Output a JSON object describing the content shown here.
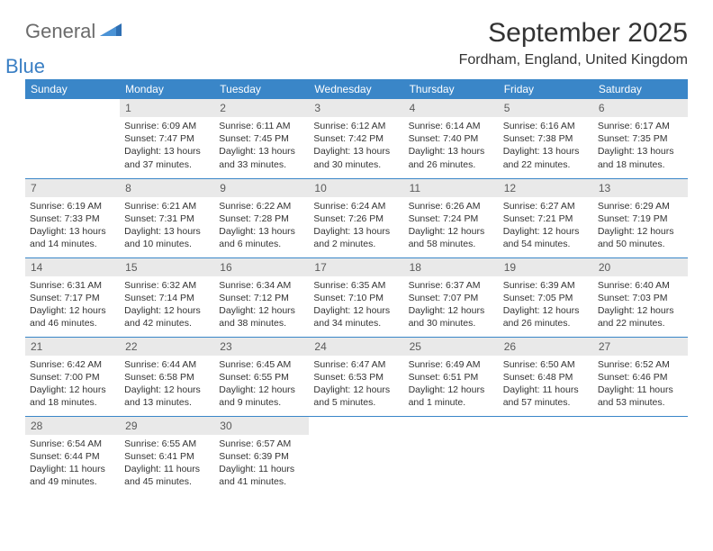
{
  "brand": {
    "word1": "General",
    "word2": "Blue"
  },
  "title": "September 2025",
  "location": "Fordham, England, United Kingdom",
  "colors": {
    "header_bg": "#3a86c8",
    "header_text": "#ffffff",
    "daynum_bg": "#e9e9e9",
    "daynum_text": "#5a5a5a",
    "body_text": "#333333",
    "rule": "#3a86c8",
    "logo_gray": "#6b6b6b",
    "logo_blue": "#3a7fc4"
  },
  "weekday_labels": [
    "Sunday",
    "Monday",
    "Tuesday",
    "Wednesday",
    "Thursday",
    "Friday",
    "Saturday"
  ],
  "days": [
    {
      "n": 1,
      "sunrise": "6:09 AM",
      "sunset": "7:47 PM",
      "daylight": "13 hours and 37 minutes."
    },
    {
      "n": 2,
      "sunrise": "6:11 AM",
      "sunset": "7:45 PM",
      "daylight": "13 hours and 33 minutes."
    },
    {
      "n": 3,
      "sunrise": "6:12 AM",
      "sunset": "7:42 PM",
      "daylight": "13 hours and 30 minutes."
    },
    {
      "n": 4,
      "sunrise": "6:14 AM",
      "sunset": "7:40 PM",
      "daylight": "13 hours and 26 minutes."
    },
    {
      "n": 5,
      "sunrise": "6:16 AM",
      "sunset": "7:38 PM",
      "daylight": "13 hours and 22 minutes."
    },
    {
      "n": 6,
      "sunrise": "6:17 AM",
      "sunset": "7:35 PM",
      "daylight": "13 hours and 18 minutes."
    },
    {
      "n": 7,
      "sunrise": "6:19 AM",
      "sunset": "7:33 PM",
      "daylight": "13 hours and 14 minutes."
    },
    {
      "n": 8,
      "sunrise": "6:21 AM",
      "sunset": "7:31 PM",
      "daylight": "13 hours and 10 minutes."
    },
    {
      "n": 9,
      "sunrise": "6:22 AM",
      "sunset": "7:28 PM",
      "daylight": "13 hours and 6 minutes."
    },
    {
      "n": 10,
      "sunrise": "6:24 AM",
      "sunset": "7:26 PM",
      "daylight": "13 hours and 2 minutes."
    },
    {
      "n": 11,
      "sunrise": "6:26 AM",
      "sunset": "7:24 PM",
      "daylight": "12 hours and 58 minutes."
    },
    {
      "n": 12,
      "sunrise": "6:27 AM",
      "sunset": "7:21 PM",
      "daylight": "12 hours and 54 minutes."
    },
    {
      "n": 13,
      "sunrise": "6:29 AM",
      "sunset": "7:19 PM",
      "daylight": "12 hours and 50 minutes."
    },
    {
      "n": 14,
      "sunrise": "6:31 AM",
      "sunset": "7:17 PM",
      "daylight": "12 hours and 46 minutes."
    },
    {
      "n": 15,
      "sunrise": "6:32 AM",
      "sunset": "7:14 PM",
      "daylight": "12 hours and 42 minutes."
    },
    {
      "n": 16,
      "sunrise": "6:34 AM",
      "sunset": "7:12 PM",
      "daylight": "12 hours and 38 minutes."
    },
    {
      "n": 17,
      "sunrise": "6:35 AM",
      "sunset": "7:10 PM",
      "daylight": "12 hours and 34 minutes."
    },
    {
      "n": 18,
      "sunrise": "6:37 AM",
      "sunset": "7:07 PM",
      "daylight": "12 hours and 30 minutes."
    },
    {
      "n": 19,
      "sunrise": "6:39 AM",
      "sunset": "7:05 PM",
      "daylight": "12 hours and 26 minutes."
    },
    {
      "n": 20,
      "sunrise": "6:40 AM",
      "sunset": "7:03 PM",
      "daylight": "12 hours and 22 minutes."
    },
    {
      "n": 21,
      "sunrise": "6:42 AM",
      "sunset": "7:00 PM",
      "daylight": "12 hours and 18 minutes."
    },
    {
      "n": 22,
      "sunrise": "6:44 AM",
      "sunset": "6:58 PM",
      "daylight": "12 hours and 13 minutes."
    },
    {
      "n": 23,
      "sunrise": "6:45 AM",
      "sunset": "6:55 PM",
      "daylight": "12 hours and 9 minutes."
    },
    {
      "n": 24,
      "sunrise": "6:47 AM",
      "sunset": "6:53 PM",
      "daylight": "12 hours and 5 minutes."
    },
    {
      "n": 25,
      "sunrise": "6:49 AM",
      "sunset": "6:51 PM",
      "daylight": "12 hours and 1 minute."
    },
    {
      "n": 26,
      "sunrise": "6:50 AM",
      "sunset": "6:48 PM",
      "daylight": "11 hours and 57 minutes."
    },
    {
      "n": 27,
      "sunrise": "6:52 AM",
      "sunset": "6:46 PM",
      "daylight": "11 hours and 53 minutes."
    },
    {
      "n": 28,
      "sunrise": "6:54 AM",
      "sunset": "6:44 PM",
      "daylight": "11 hours and 49 minutes."
    },
    {
      "n": 29,
      "sunrise": "6:55 AM",
      "sunset": "6:41 PM",
      "daylight": "11 hours and 45 minutes."
    },
    {
      "n": 30,
      "sunrise": "6:57 AM",
      "sunset": "6:39 PM",
      "daylight": "11 hours and 41 minutes."
    }
  ],
  "first_weekday_index": 1,
  "labels": {
    "sunrise": "Sunrise:",
    "sunset": "Sunset:",
    "daylight": "Daylight:"
  }
}
